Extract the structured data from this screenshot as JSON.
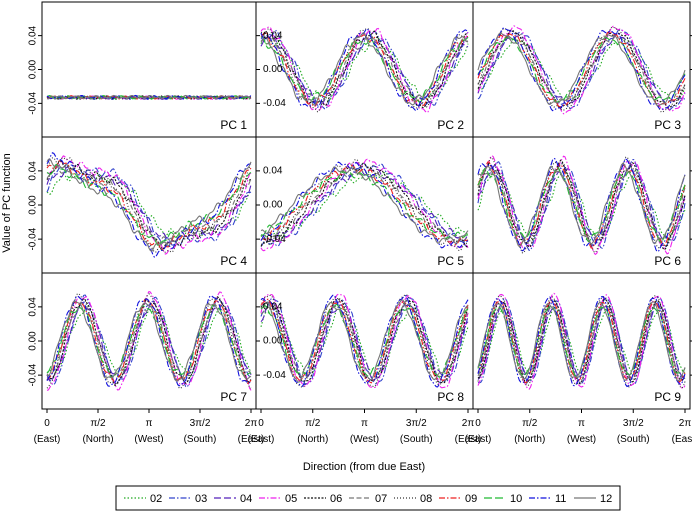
{
  "chart_data": {
    "type": "line",
    "ylabel": "Value of PC function",
    "xlabel": "Direction (from due East)",
    "xlim": [
      0,
      6.2832
    ],
    "ylim": [
      -0.075,
      0.075
    ],
    "yticks": [
      {
        "value": 0.04,
        "label": "0.04"
      },
      {
        "value": 0.0,
        "label": "0.00"
      },
      {
        "value": -0.04,
        "label": "-0.04"
      }
    ],
    "xticks": [
      {
        "value": 0,
        "label": "0",
        "sublabel": "(East)"
      },
      {
        "value": 1.5708,
        "label": "π/2",
        "sublabel": "(North)"
      },
      {
        "value": 3.1416,
        "label": "π",
        "sublabel": "(West)"
      },
      {
        "value": 4.7124,
        "label": "3π/2",
        "sublabel": "(South)"
      },
      {
        "value": 6.2832,
        "label": "2π",
        "sublabel": "(East)"
      }
    ],
    "series_styles": [
      {
        "name": "02",
        "color": "#22aa22",
        "dash": "1.5 2"
      },
      {
        "name": "03",
        "color": "#3344cc",
        "dash": "6 2 1.5 2"
      },
      {
        "name": "04",
        "color": "#5522bb",
        "dash": "7 3"
      },
      {
        "name": "05",
        "color": "#ee22ee",
        "dash": "6 2 1.5 2"
      },
      {
        "name": "06",
        "color": "#111111",
        "dash": "2 1.5"
      },
      {
        "name": "07",
        "color": "#777777",
        "dash": "5 2.5"
      },
      {
        "name": "08",
        "color": "#333333",
        "dash": "1 2"
      },
      {
        "name": "09",
        "color": "#ee2222",
        "dash": "6 2 1.5 2"
      },
      {
        "name": "10",
        "color": "#22bb33",
        "dash": "8 3"
      },
      {
        "name": "11",
        "color": "#1111dd",
        "dash": "6 2 1.5 2"
      },
      {
        "name": "12",
        "color": "#777777",
        "dash": ""
      }
    ],
    "panels": [
      {
        "label": "PC 1",
        "components": [
          [
            0.001,
            0,
            0
          ]
        ],
        "offset": -0.033,
        "noise": 0.002
      },
      {
        "label": "PC 2",
        "components": [
          [
            0.04,
            2,
            1.35
          ]
        ],
        "offset": 0.0,
        "noise": 0.006
      },
      {
        "label": "PC 3",
        "components": [
          [
            0.042,
            2,
            -0.45
          ]
        ],
        "offset": 0.0,
        "noise": 0.004
      },
      {
        "label": "PC 4",
        "components": [
          [
            0.045,
            1,
            0.7
          ],
          [
            0.008,
            3,
            1.0
          ]
        ],
        "offset": 0.0,
        "noise": 0.006
      },
      {
        "label": "PC 5",
        "components": [
          [
            0.043,
            1,
            -1.4
          ]
        ],
        "offset": 0.0,
        "noise": 0.005
      },
      {
        "label": "PC 6",
        "components": [
          [
            0.045,
            3,
            0.4
          ]
        ],
        "offset": 0.0,
        "noise": 0.006
      },
      {
        "label": "PC 7",
        "components": [
          [
            0.046,
            3,
            -1.6
          ]
        ],
        "offset": 0.0,
        "noise": 0.005
      },
      {
        "label": "PC 8",
        "components": [
          [
            0.046,
            3,
            0.9
          ]
        ],
        "offset": 0.0,
        "noise": 0.005
      },
      {
        "label": "PC 9",
        "components": [
          [
            0.046,
            4,
            -1.2
          ]
        ],
        "offset": 0.0,
        "noise": 0.003
      }
    ]
  }
}
